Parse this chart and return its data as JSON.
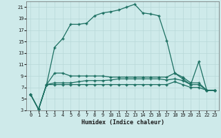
{
  "title": "",
  "xlabel": "Humidex (Indice chaleur)",
  "background_color": "#ceeaea",
  "grid_color": "#b8d8d8",
  "line_color": "#1a6e60",
  "xlim": [
    -0.5,
    23.5
  ],
  "ylim": [
    3,
    22
  ],
  "yticks": [
    3,
    5,
    7,
    9,
    11,
    13,
    15,
    17,
    19,
    21
  ],
  "xticks": [
    0,
    1,
    2,
    3,
    4,
    5,
    6,
    7,
    8,
    9,
    10,
    11,
    12,
    13,
    14,
    15,
    16,
    17,
    18,
    19,
    20,
    21,
    22,
    23
  ],
  "series1_x": [
    0,
    1,
    2,
    3,
    4,
    5,
    6,
    7,
    8,
    9,
    10,
    11,
    12,
    13,
    14,
    15,
    16,
    17,
    18,
    19,
    20,
    21,
    22,
    23
  ],
  "series1_y": [
    5.8,
    3.2,
    7.5,
    14.0,
    15.5,
    18.0,
    18.0,
    18.2,
    19.5,
    20.0,
    20.2,
    20.5,
    21.0,
    21.5,
    20.0,
    19.8,
    19.5,
    15.2,
    9.5,
    8.5,
    7.5,
    11.5,
    6.5,
    6.5
  ],
  "series2_x": [
    0,
    1,
    2,
    3,
    4,
    5,
    6,
    7,
    8,
    9,
    10,
    11,
    12,
    13,
    14,
    15,
    16,
    17,
    18,
    19,
    20,
    21,
    22,
    23
  ],
  "series2_y": [
    5.8,
    3.2,
    7.5,
    9.5,
    9.5,
    9.0,
    9.0,
    9.0,
    9.0,
    9.0,
    8.8,
    8.8,
    8.8,
    8.8,
    8.8,
    8.8,
    8.8,
    8.8,
    9.5,
    8.8,
    7.8,
    7.8,
    6.5,
    6.5
  ],
  "series3_x": [
    0,
    1,
    2,
    3,
    4,
    5,
    6,
    7,
    8,
    9,
    10,
    11,
    12,
    13,
    14,
    15,
    16,
    17,
    18,
    19,
    20,
    21,
    22,
    23
  ],
  "series3_y": [
    5.8,
    3.2,
    7.5,
    7.8,
    7.8,
    7.8,
    8.0,
    8.2,
    8.2,
    8.2,
    8.3,
    8.5,
    8.5,
    8.5,
    8.5,
    8.5,
    8.5,
    8.3,
    8.5,
    8.2,
    7.5,
    7.5,
    6.5,
    6.5
  ],
  "series4_x": [
    0,
    1,
    2,
    3,
    4,
    5,
    6,
    7,
    8,
    9,
    10,
    11,
    12,
    13,
    14,
    15,
    16,
    17,
    18,
    19,
    20,
    21,
    22,
    23
  ],
  "series4_y": [
    5.8,
    3.2,
    7.5,
    7.5,
    7.5,
    7.5,
    7.5,
    7.5,
    7.5,
    7.5,
    7.5,
    7.5,
    7.5,
    7.5,
    7.5,
    7.5,
    7.5,
    7.5,
    8.0,
    7.5,
    7.0,
    7.0,
    6.5,
    6.5
  ]
}
